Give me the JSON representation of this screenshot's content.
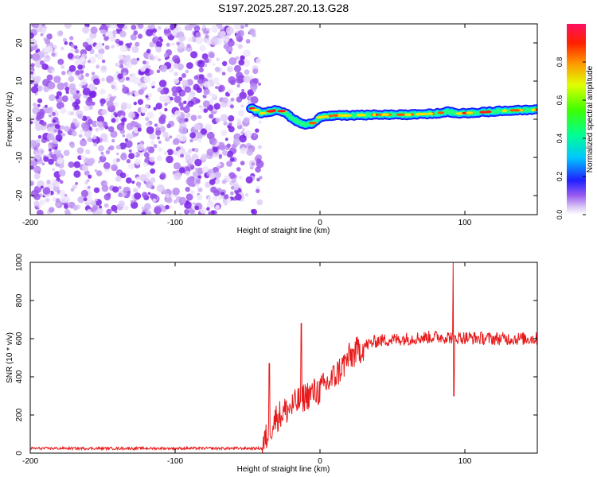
{
  "title": "S197.2025.287.20.13.G28",
  "chart_data": [
    {
      "type": "heatmap",
      "name": "spectrogram",
      "xlabel": "Height of straight line (km)",
      "ylabel": "Frequency (Hz)",
      "xlim": [
        -200,
        150
      ],
      "ylim": [
        -25,
        25
      ],
      "x_ticks": [
        -200,
        -100,
        0,
        100
      ],
      "y_ticks": [
        -20,
        -10,
        0,
        10,
        20
      ],
      "noise_region_x": [
        -200,
        -45
      ],
      "signal_start_x": -48,
      "signal_frequency_trace": {
        "x": [
          -48,
          -45,
          -40,
          -35,
          -30,
          -25,
          -20,
          -15,
          -10,
          -5,
          0,
          10,
          20,
          40,
          60,
          80,
          88,
          95,
          110,
          130,
          150
        ],
        "y": [
          3,
          2.5,
          1.5,
          2,
          2.5,
          2,
          0.5,
          -0.8,
          -1.5,
          -1,
          0.5,
          1,
          1,
          1.2,
          1.2,
          1.5,
          2,
          1.5,
          1.8,
          2.3,
          2.5
        ]
      },
      "colorbar": {
        "label": "Normalized spectral amplitude",
        "range": [
          0,
          1
        ],
        "ticks": [
          0.0,
          0.2,
          0.4,
          0.6,
          0.8
        ]
      }
    },
    {
      "type": "line",
      "name": "snr",
      "xlabel": "Height of straight line (km)",
      "ylabel": "SNR (10 * v/v)",
      "xlim": [
        -200,
        150
      ],
      "ylim": [
        0,
        1000
      ],
      "x_ticks": [
        -200,
        -100,
        0,
        100
      ],
      "y_ticks": [
        0,
        200,
        400,
        600,
        800,
        1000
      ],
      "color": "#e8191a",
      "trend": {
        "x": [
          -200,
          -40,
          -35,
          -30,
          -20,
          -10,
          0,
          10,
          20,
          30,
          40,
          60,
          80,
          100,
          120,
          150
        ],
        "y": [
          25,
          25,
          120,
          190,
          240,
          300,
          330,
          400,
          500,
          560,
          590,
          600,
          610,
          605,
          600,
          600
        ]
      },
      "spikes": [
        {
          "x": -35,
          "y": 470
        },
        {
          "x": -13,
          "y": 680
        },
        {
          "x": 92,
          "y": 1000
        },
        {
          "x": 92.5,
          "y": 300
        }
      ]
    }
  ]
}
